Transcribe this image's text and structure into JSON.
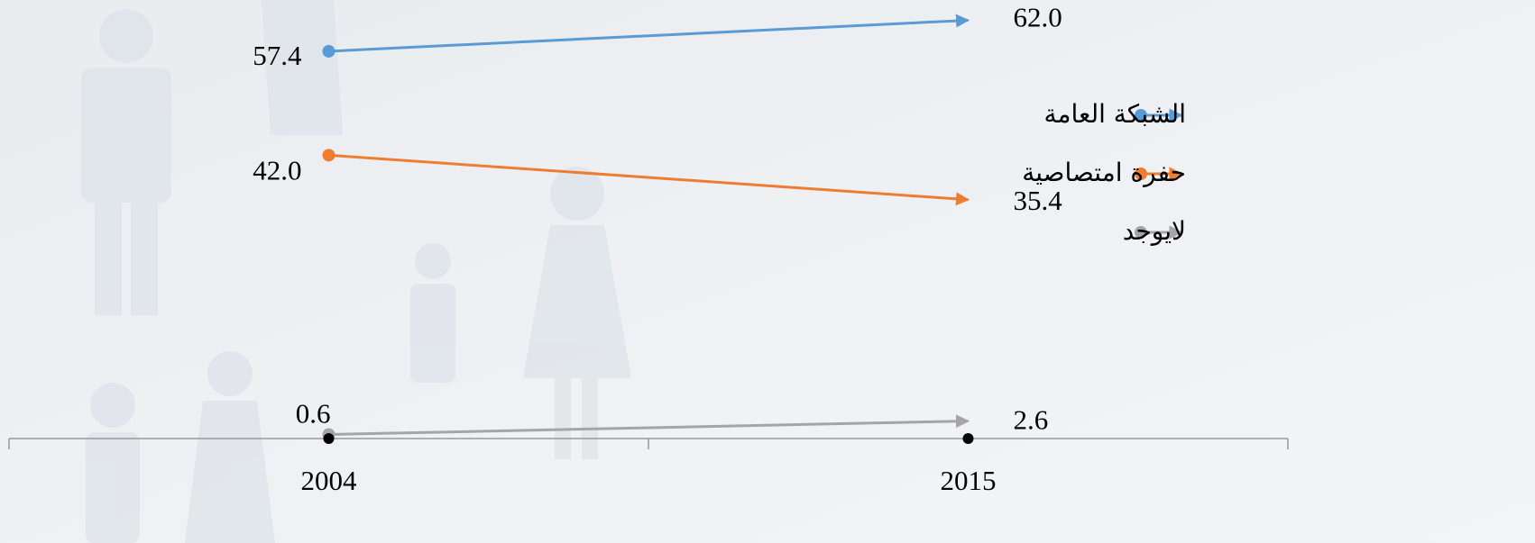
{
  "chart_data": {
    "type": "line",
    "categories": [
      "2004",
      "2015"
    ],
    "series": [
      {
        "name": "الشبكة العامة",
        "color": "#5b9bd5",
        "values": [
          57.4,
          62.0
        ],
        "value_labels": [
          "57.4",
          "62.0"
        ]
      },
      {
        "name": "حفرة امتصاصية",
        "color": "#ed7d31",
        "values": [
          42.0,
          35.4
        ],
        "value_labels": [
          "42.0",
          "35.4"
        ]
      },
      {
        "name": "لايوجد",
        "color": "#a5a5a5",
        "values": [
          0.6,
          2.6
        ],
        "value_labels": [
          "0.6",
          "2.6"
        ]
      }
    ],
    "ylim": [
      0,
      65
    ],
    "legend": "right"
  }
}
